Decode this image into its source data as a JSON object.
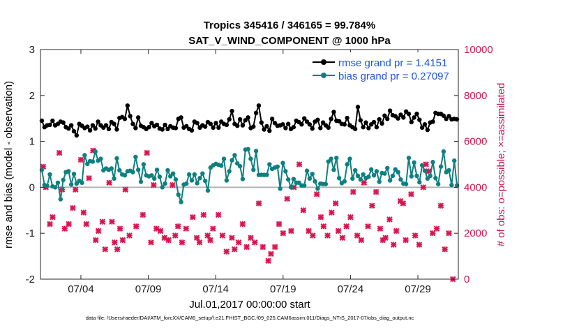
{
  "chart_data": {
    "type": "line",
    "title": "Tropics 345416 / 346165 = 99.784%",
    "subtitle": "SAT_V_WIND_COMPONENT @ 1000 hPa",
    "xlabel": "Jul.01,2017 00:00:00 start",
    "ylabel_left": "rmse and bias (model - observation)",
    "ylabel_right": "# of obs: o=possible; ×=assimilated",
    "footnote": "data file: /Users/raeder/DAI/ATM_forcXX/CAM6_setup/f.e21.FHIST_BGC.f09_025.CAM6assim.011/Diags_NTrS_2017-07/obs_diag_output.nc",
    "x_tick_labels": [
      "07/04",
      "07/09",
      "07/14",
      "07/19",
      "07/24",
      "07/29"
    ],
    "x_tick_days": [
      4,
      9,
      14,
      19,
      24,
      29
    ],
    "xlim_days": [
      1,
      32
    ],
    "ylim_left": [
      -2,
      3
    ],
    "yticks_left": [
      "-2",
      "-1",
      "0",
      "1",
      "2",
      "3"
    ],
    "ylim_right": [
      0,
      10000
    ],
    "yticks_right": [
      "0",
      "2000",
      "4000",
      "6000",
      "8000",
      "10000"
    ],
    "legend": [
      {
        "label": "rmse grand pr = 1.4151",
        "color": "#000000"
      },
      {
        "label": "bias grand pr = 0.27097",
        "color": "#0f7f7f"
      }
    ],
    "colors": {
      "rmse": "#000000",
      "bias": "#0f7f7f",
      "obs": "#d8154f",
      "zero_line": "#b3b3b3"
    },
    "rmse_values": [
      1.45,
      1.31,
      1.35,
      1.36,
      1.45,
      1.35,
      1.38,
      1.43,
      1.41,
      1.31,
      1.28,
      1.35,
      1.22,
      1.13,
      1.38,
      1.34,
      1.29,
      1.32,
      1.24,
      1.35,
      1.28,
      1.43,
      1.35,
      1.3,
      1.35,
      1.27,
      1.42,
      1.38,
      1.26,
      1.51,
      1.53,
      1.49,
      1.78,
      1.55,
      1.38,
      1.29,
      1.52,
      1.34,
      1.31,
      1.27,
      1.31,
      1.4,
      1.33,
      1.36,
      1.28,
      1.26,
      1.36,
      1.27,
      1.33,
      1.3,
      1.29,
      1.49,
      1.52,
      1.3,
      1.33,
      1.27,
      1.24,
      1.43,
      1.4,
      1.3,
      1.35,
      1.32,
      1.42,
      1.38,
      1.3,
      1.4,
      1.3,
      1.43,
      1.38,
      1.36,
      1.48,
      1.66,
      1.38,
      1.34,
      1.48,
      1.35,
      1.46,
      1.52,
      1.29,
      1.32,
      1.62,
      1.78,
      1.41,
      1.26,
      1.33,
      1.23,
      1.49,
      1.4,
      1.34,
      1.35,
      1.37,
      1.29,
      1.38,
      1.27,
      1.31,
      1.45,
      1.42,
      1.37,
      1.5,
      1.43,
      1.37,
      1.28,
      1.43,
      1.47,
      1.29,
      1.41,
      1.35,
      1.3,
      1.49,
      1.64,
      1.45,
      1.44,
      1.38,
      1.37,
      1.51,
      1.35,
      1.31,
      1.27,
      1.75,
      1.46,
      1.31,
      1.41,
      1.29,
      1.37,
      1.42,
      1.31,
      1.48,
      1.39,
      1.56,
      1.49,
      1.67,
      1.57,
      1.55,
      1.5,
      1.58,
      1.52,
      1.65,
      1.6,
      1.42,
      1.52,
      1.6,
      1.47,
      1.3,
      1.37,
      1.25,
      1.41,
      1.43,
      1.62,
      1.6,
      1.6,
      1.56,
      1.49,
      1.55,
      1.48,
      1.49,
      1.48
    ],
    "bias_values": [
      0.38,
      0.05,
      0.03,
      0.28,
      0.02,
      0.0,
      0.1,
      -0.26,
      0.16,
      0.33,
      0.35,
      0.06,
      0.29,
      0.08,
      0.14,
      0.1,
      0.7,
      0.51,
      0.57,
      0.56,
      0.78,
      0.58,
      0.62,
      0.37,
      0.41,
      0.38,
      0.41,
      0.19,
      0.63,
      0.37,
      0.28,
      0.26,
      0.35,
      0.36,
      0.33,
      0.66,
      0.38,
      0.12,
      0.5,
      0.26,
      0.24,
      0.26,
      0.19,
      0.38,
      0.23,
      0.0,
      0.08,
      0.37,
      0.24,
      0.3,
      0.17,
      -0.16,
      -0.32,
      0.06,
      0.08,
      0.28,
      0.15,
      0.28,
      0.09,
      0.2,
      0.3,
      0.14,
      -0.07,
      0.43,
      0.48,
      0.51,
      0.49,
      0.47,
      0.62,
      0.15,
      0.35,
      0.59,
      0.7,
      0.52,
      0.46,
      0.18,
      0.82,
      0.83,
      0.62,
      0.38,
      0.79,
      0.27,
      0.27,
      0.27,
      0.27,
      0.5,
      0.4,
      0.43,
      0.45,
      -0.03,
      0.53,
      0.35,
      0.17,
      0.0,
      0.18,
      0.1,
      0.1,
      0.04,
      0.04,
      0.36,
      0.19,
      0.29,
      0.13,
      -0.03,
      0.08,
      0.07,
      0.07,
      0.56,
      0.62,
      0.38,
      0.64,
      0.2,
      0.09,
      0.13,
      0.5,
      0.62,
      0.19,
      0.37,
      0.25,
      0.17,
      0.28,
      0.2,
      0.23,
      0.39,
      0.26,
      0.35,
      0.12,
      0.31,
      0.3,
      0.42,
      0.15,
      0.25,
      0.39,
      0.33,
      0.17,
      0.08,
      0.07,
      0.64,
      0.24,
      0.54,
      0.25,
      0.11,
      0.48,
      0.36,
      0.19,
      0.25,
      0.55,
      0.2,
      0.07,
      0.45,
      0.78,
      0.33,
      0.37,
      0.05,
      0.58,
      0.04
    ],
    "obs_assimilated_points": [
      [
        1.2,
        4900
      ],
      [
        1.4,
        4000
      ],
      [
        1.7,
        2400
      ],
      [
        1.9,
        2700
      ],
      [
        2.4,
        5500
      ],
      [
        2.6,
        3900
      ],
      [
        2.8,
        2200
      ],
      [
        3.1,
        2400
      ],
      [
        3.4,
        3100
      ],
      [
        3.6,
        3900
      ],
      [
        4.0,
        5200
      ],
      [
        4.2,
        2900
      ],
      [
        4.4,
        2400
      ],
      [
        4.6,
        4400
      ],
      [
        4.9,
        5600
      ],
      [
        5.1,
        1700
      ],
      [
        5.3,
        2100
      ],
      [
        5.6,
        2500
      ],
      [
        5.8,
        1300
      ],
      [
        6.1,
        4200
      ],
      [
        6.3,
        2500
      ],
      [
        6.5,
        1600
      ],
      [
        6.7,
        1300
      ],
      [
        6.9,
        2200
      ],
      [
        7.1,
        1700
      ],
      [
        7.3,
        3900
      ],
      [
        7.6,
        1900
      ],
      [
        8.1,
        2300
      ],
      [
        8.6,
        2800
      ],
      [
        8.9,
        5500
      ],
      [
        9.2,
        1600
      ],
      [
        9.4,
        4100
      ],
      [
        9.6,
        2200
      ],
      [
        9.9,
        2100
      ],
      [
        10.2,
        1800
      ],
      [
        10.5,
        1700
      ],
      [
        10.8,
        4100
      ],
      [
        11.0,
        1900
      ],
      [
        11.2,
        2300
      ],
      [
        11.5,
        1600
      ],
      [
        11.8,
        2200
      ],
      [
        12.3,
        2700
      ],
      [
        12.6,
        1800
      ],
      [
        12.8,
        1600
      ],
      [
        13.1,
        2800
      ],
      [
        13.4,
        1900
      ],
      [
        13.6,
        1700
      ],
      [
        13.8,
        2200
      ],
      [
        14.2,
        2800
      ],
      [
        14.5,
        1900
      ],
      [
        14.8,
        1200
      ],
      [
        15.2,
        1800
      ],
      [
        15.4,
        1300
      ],
      [
        15.7,
        1600
      ],
      [
        16.0,
        2400
      ],
      [
        16.3,
        1400
      ],
      [
        16.6,
        1800
      ],
      [
        16.9,
        1600
      ],
      [
        17.2,
        3300
      ],
      [
        17.5,
        1400
      ],
      [
        17.9,
        800
      ],
      [
        18.1,
        1100
      ],
      [
        18.4,
        1400
      ],
      [
        18.7,
        2400
      ],
      [
        19.0,
        2000
      ],
      [
        19.3,
        3500
      ],
      [
        19.6,
        2100
      ],
      [
        19.8,
        4000
      ],
      [
        20.2,
        5000
      ],
      [
        20.5,
        3000
      ],
      [
        20.9,
        2100
      ],
      [
        21.2,
        1900
      ],
      [
        21.5,
        3700
      ],
      [
        21.8,
        2700
      ],
      [
        22.0,
        2300
      ],
      [
        22.3,
        1900
      ],
      [
        22.6,
        2900
      ],
      [
        22.9,
        3300
      ],
      [
        23.1,
        2100
      ],
      [
        23.4,
        1800
      ],
      [
        23.7,
        2300
      ],
      [
        24.0,
        2700
      ],
      [
        24.2,
        3800
      ],
      [
        24.5,
        1900
      ],
      [
        24.8,
        1700
      ],
      [
        25.0,
        4200
      ],
      [
        25.3,
        2300
      ],
      [
        25.6,
        3200
      ],
      [
        25.9,
        3800
      ],
      [
        26.2,
        2200
      ],
      [
        26.4,
        1700
      ],
      [
        26.6,
        1800
      ],
      [
        26.9,
        2600
      ],
      [
        27.2,
        1500
      ],
      [
        27.4,
        2100
      ],
      [
        27.7,
        3400
      ],
      [
        27.9,
        3300
      ],
      [
        28.1,
        1700
      ],
      [
        28.5,
        3700
      ],
      [
        28.8,
        1900
      ],
      [
        29.1,
        1500
      ],
      [
        29.4,
        4000
      ],
      [
        29.6,
        5000
      ],
      [
        29.8,
        4700
      ],
      [
        30.1,
        2000
      ],
      [
        30.4,
        2200
      ],
      [
        30.7,
        3200
      ],
      [
        31.0,
        1300
      ],
      [
        31.3,
        2000
      ],
      [
        31.6,
        0
      ]
    ]
  }
}
